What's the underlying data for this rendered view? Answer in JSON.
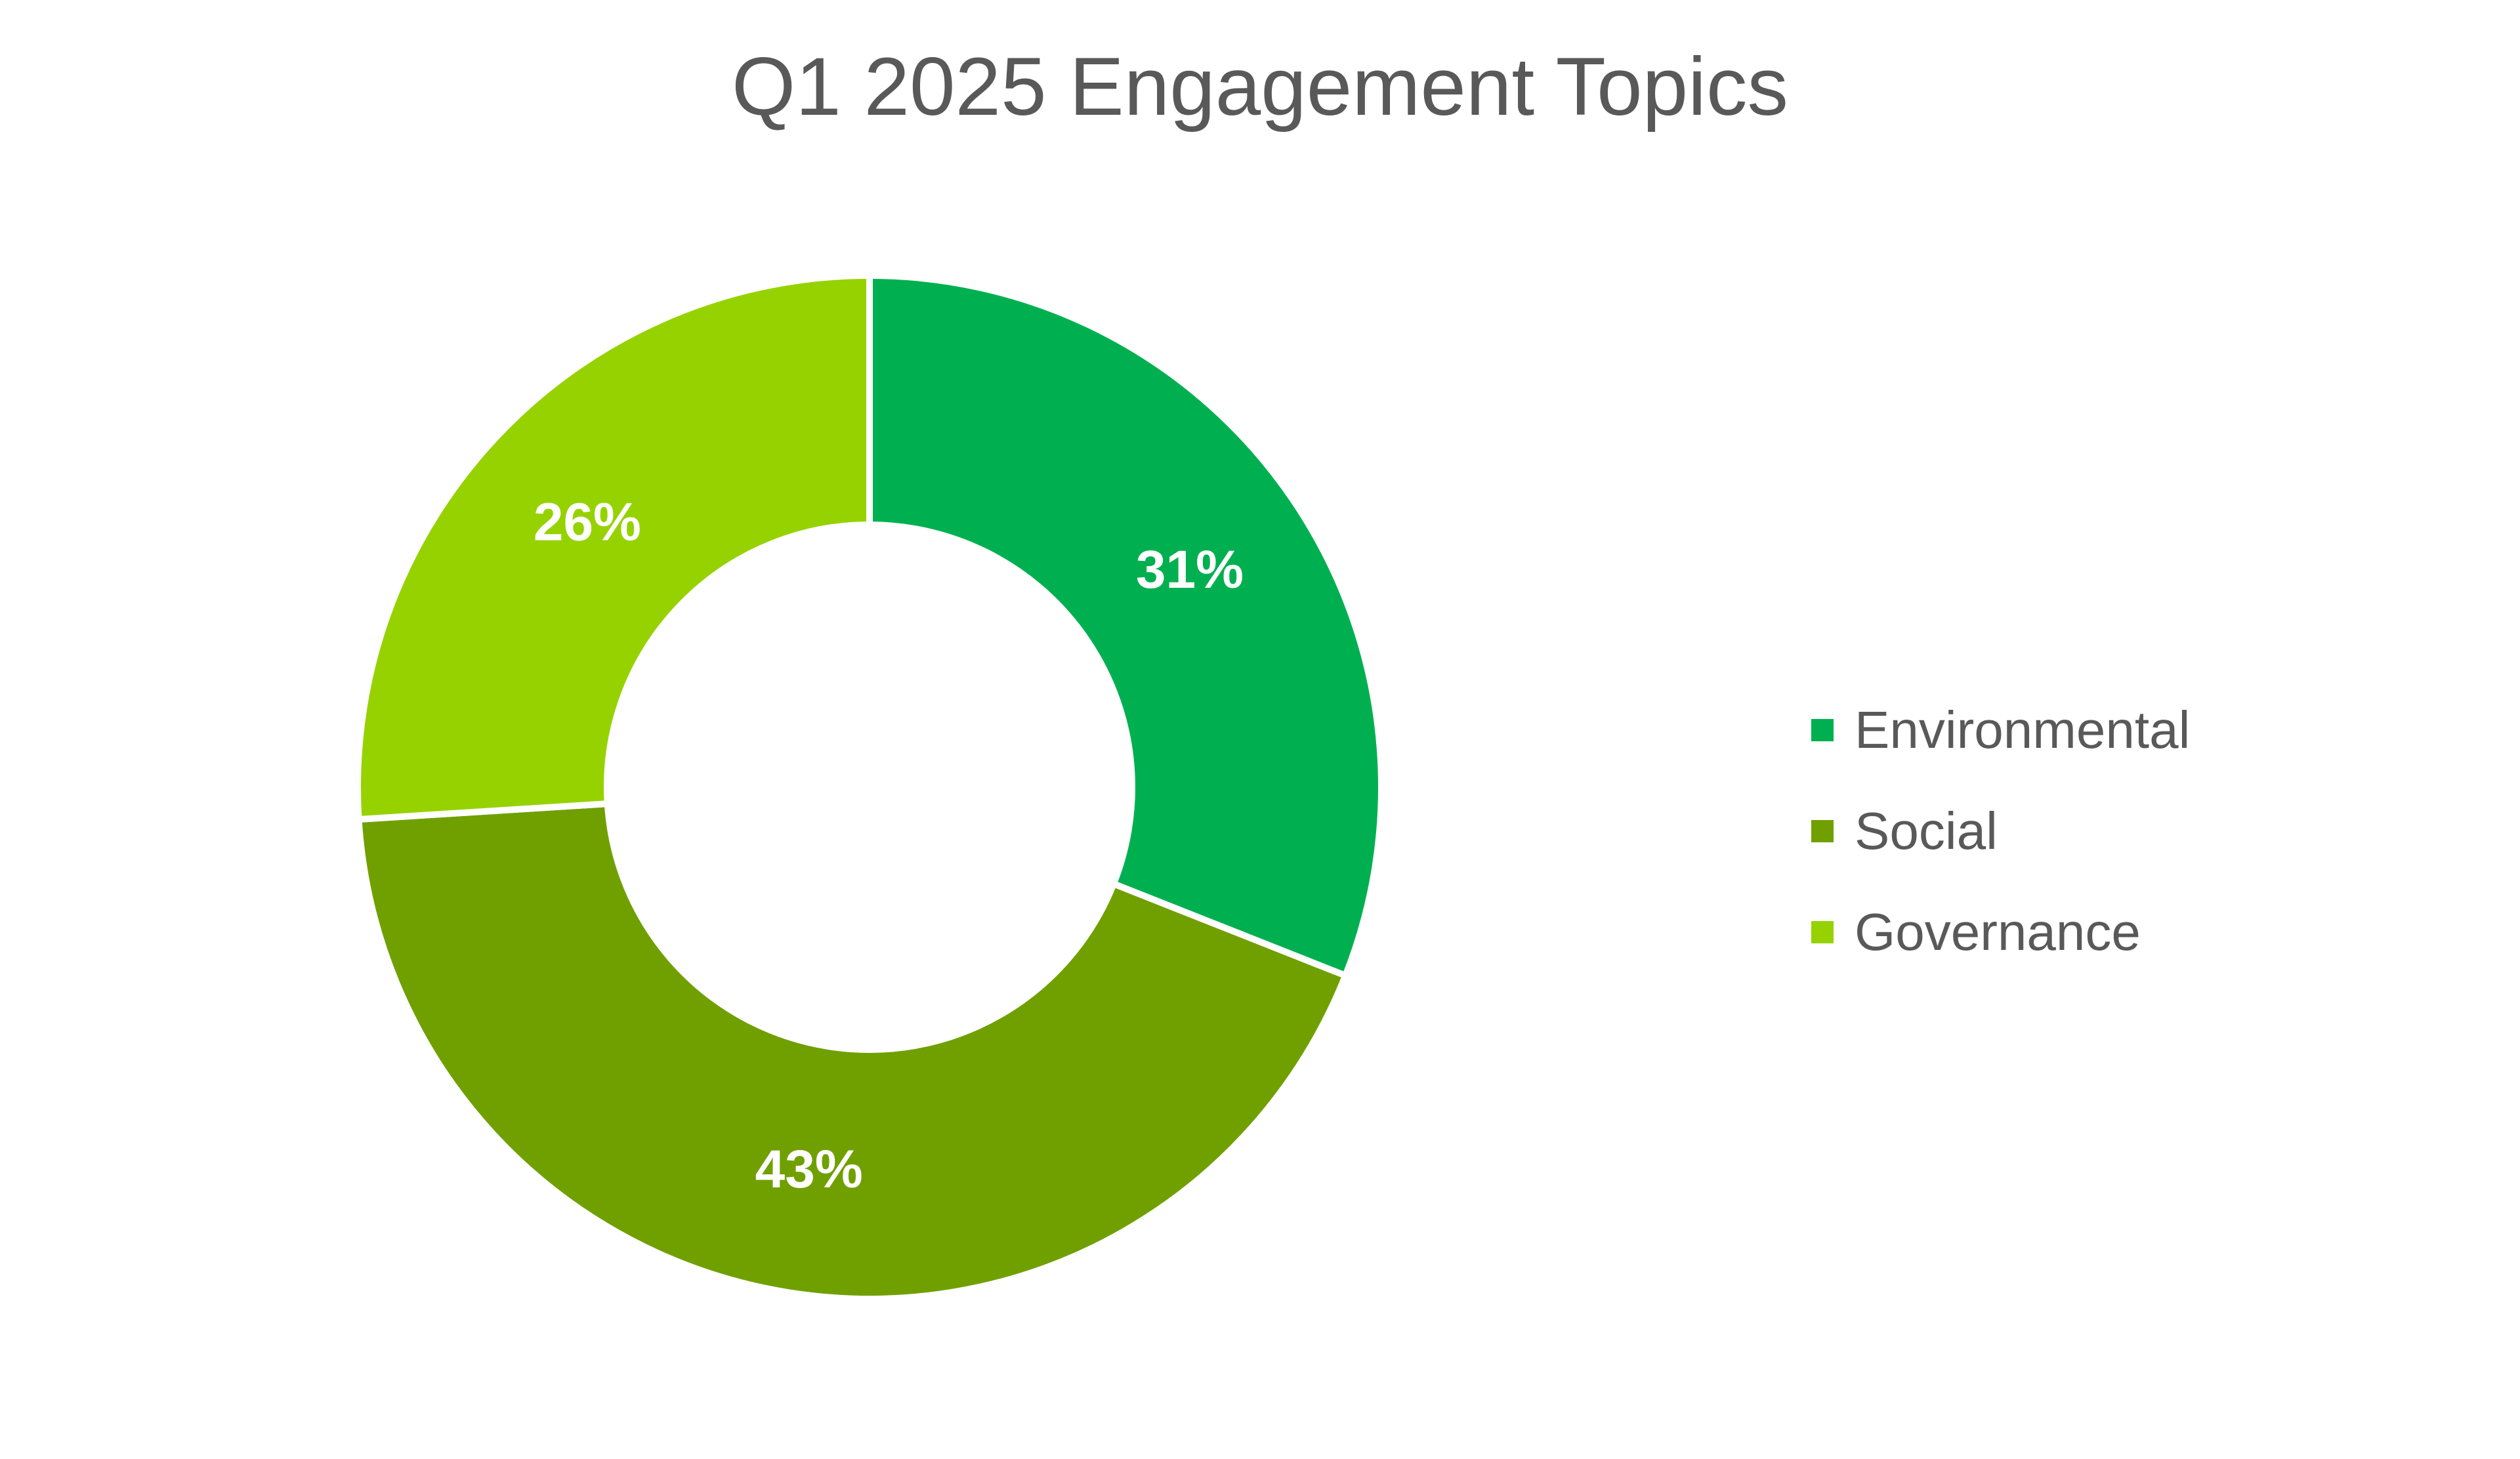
{
  "chart_data": {
    "type": "pie",
    "title": "Q1 2025 Engagement Topics",
    "categories": [
      "Environmental",
      "Social",
      "Governance"
    ],
    "values": [
      31,
      43,
      26
    ],
    "labels": [
      "31%",
      "43%",
      "26%"
    ],
    "colors": [
      "#00b050",
      "#70a000",
      "#96d200"
    ],
    "donut": true,
    "legend_position": "right"
  }
}
